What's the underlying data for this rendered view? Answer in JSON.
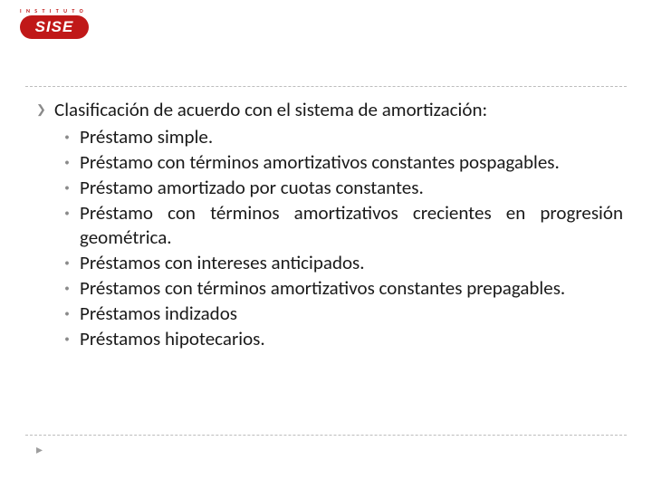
{
  "logo": {
    "top_text": "I N S T I T U T O",
    "main_text": "SISE",
    "bg_color": "#c01818",
    "text_color": "#ffffff"
  },
  "content": {
    "heading": "Clasificación de acuerdo con el sistema de amortización:",
    "items": [
      "Préstamo simple.",
      "Préstamo con términos amortizativos constantes pospagables.",
      "Préstamo amortizado por cuotas constantes.",
      "Préstamo con términos amortizativos crecientes en progresión geométrica.",
      "Préstamos con intereses anticipados.",
      "Préstamos con términos amortizativos constantes prepagables.",
      "Préstamos indizados",
      "Préstamos hipotecarios."
    ]
  },
  "markers": {
    "main": "❯",
    "sub": "•",
    "footer": "▸"
  },
  "styling": {
    "background": "#ffffff",
    "text_color": "#1a1a1a",
    "marker_color": "#8a8a8a",
    "divider_color": "#bdbdbd",
    "heading_fontsize": 21,
    "item_fontsize": 21,
    "line_height": 27
  }
}
